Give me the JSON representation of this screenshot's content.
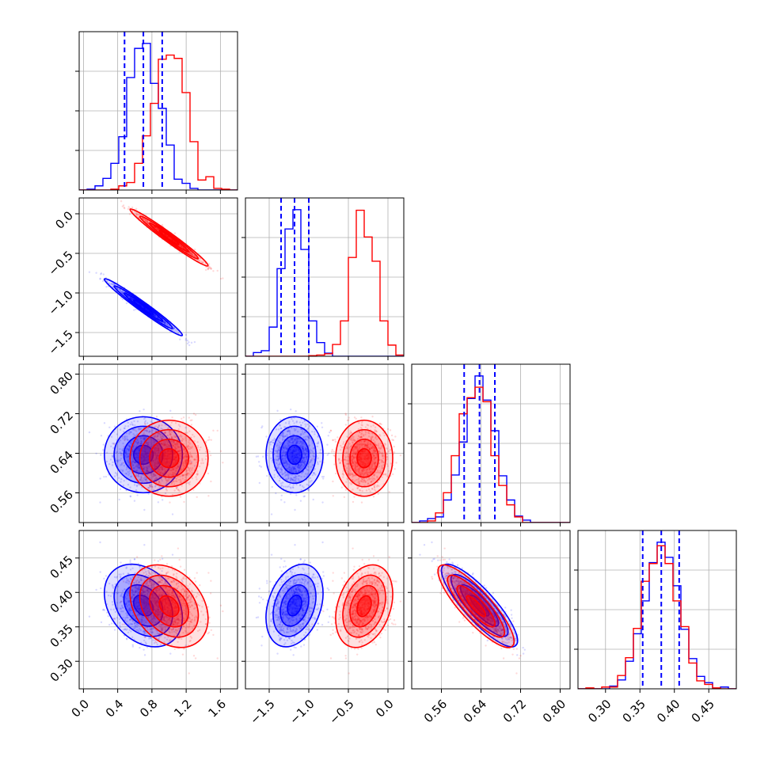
{
  "colors": {
    "a": "#0000ff",
    "b": "#ff0000",
    "grid": "#b0b0b0",
    "frame": "#000000"
  },
  "chart_data": {
    "type": "corner",
    "grid": true,
    "legend": "none",
    "params": [
      {
        "range": [
          -0.05,
          1.8
        ],
        "ticks": [
          0.0,
          0.4,
          0.8,
          1.2,
          1.6
        ],
        "tick_labels": [
          "0.0",
          "0.4",
          "0.8",
          "1.2",
          "1.6"
        ]
      },
      {
        "range": [
          -1.8,
          0.2
        ],
        "ticks": [
          -1.5,
          -1.0,
          -0.5,
          0.0
        ],
        "tick_labels": [
          "−1.5",
          "−1.0",
          "−0.5",
          "0.0"
        ]
      },
      {
        "range": [
          0.5,
          0.82
        ],
        "ticks": [
          0.56,
          0.64,
          0.72,
          0.8
        ],
        "tick_labels": [
          "0.56",
          "0.64",
          "0.72",
          "0.80"
        ]
      },
      {
        "range": [
          0.26,
          0.49
        ],
        "ticks": [
          0.3,
          0.35,
          0.4,
          0.45
        ],
        "tick_labels": [
          "0.30",
          "0.35",
          "0.40",
          "0.45"
        ]
      }
    ],
    "series": [
      {
        "color": "blue",
        "mean": [
          0.7,
          -1.18,
          0.637,
          0.381
        ],
        "sd": [
          0.19,
          0.15,
          0.032,
          0.025
        ],
        "corr": [
          [
            1,
            -0.98,
            0,
            -0.3
          ],
          [
            -0.98,
            1,
            0,
            0.3
          ],
          [
            0,
            0,
            1,
            -0.85
          ],
          [
            -0.3,
            0.3,
            -0.85,
            1
          ]
        ],
        "quantiles": [
          [
            0.48,
            0.7,
            0.92
          ],
          [
            -1.35,
            -1.18,
            -1.0
          ],
          [
            0.606,
            0.637,
            0.668
          ],
          [
            0.354,
            0.381,
            0.407
          ]
        ]
      },
      {
        "color": "red",
        "mean": [
          1.0,
          -0.3,
          0.63,
          0.38
        ],
        "sd": [
          0.19,
          0.15,
          0.032,
          0.025
        ],
        "corr": [
          [
            1,
            -0.98,
            0,
            -0.3
          ],
          [
            -0.98,
            1,
            0,
            0.3
          ],
          [
            0,
            0,
            1,
            -0.85
          ],
          [
            -0.3,
            0.3,
            -0.85,
            1
          ]
        ]
      }
    ]
  }
}
